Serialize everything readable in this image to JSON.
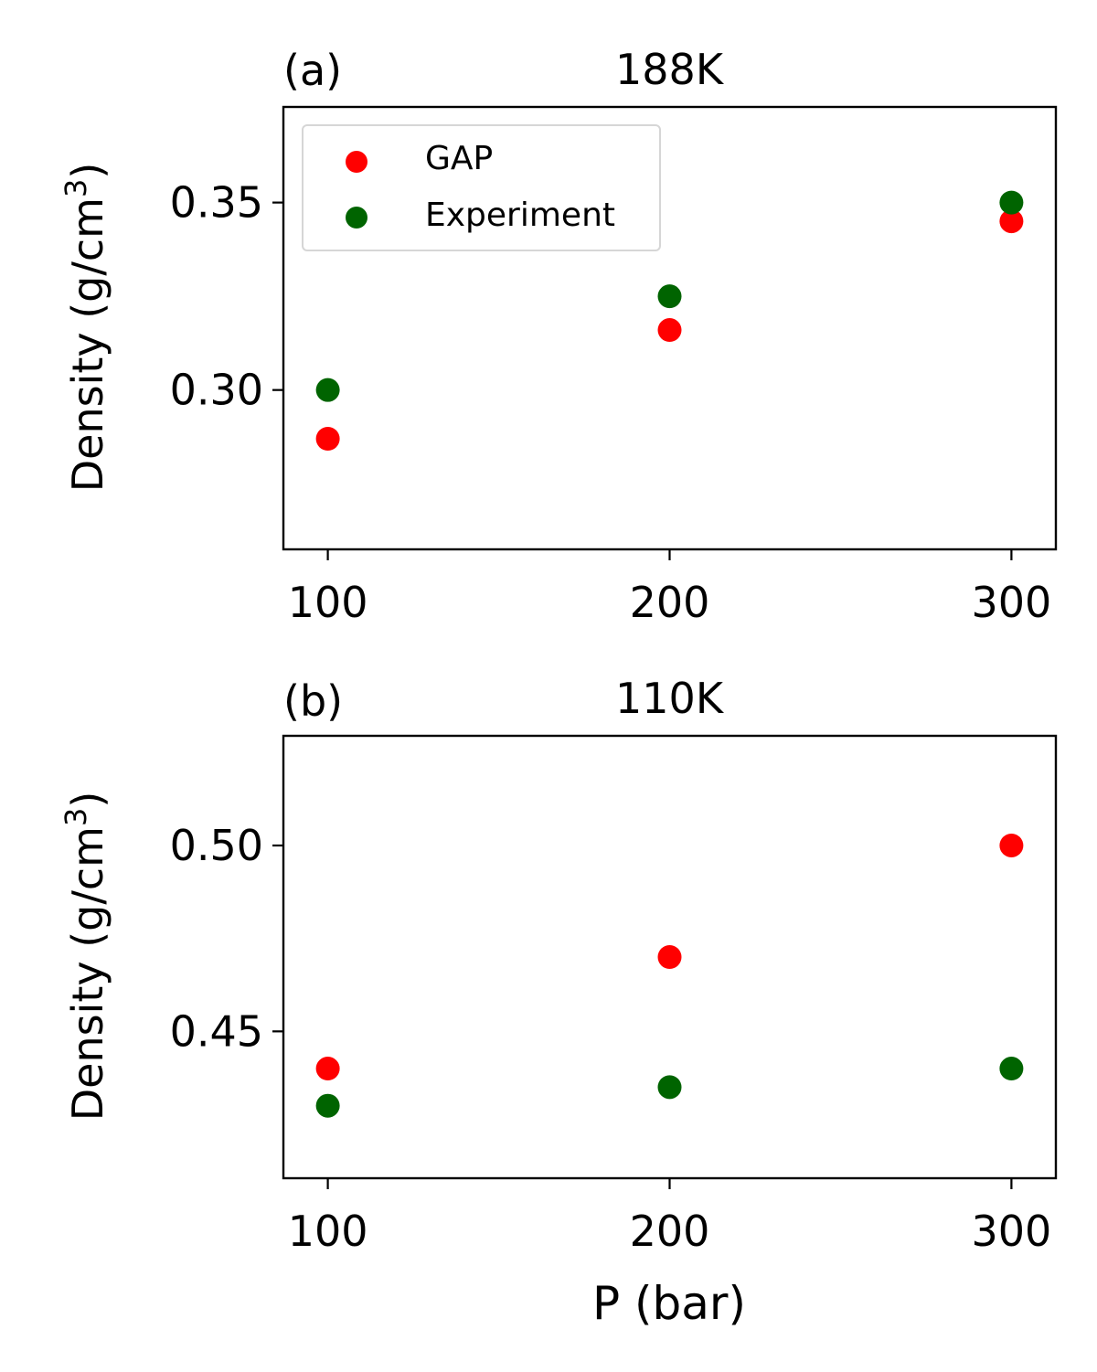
{
  "chart_data": [
    {
      "type": "scatter",
      "panel_label": "(a)",
      "title": "188K",
      "xlabel": "",
      "ylabel": "Density (g/cm",
      "ylabel_sup": "3",
      "ylabel_close": ")",
      "x": [
        100,
        200,
        300
      ],
      "xlim": [
        87,
        313
      ],
      "ylim": [
        0.2575,
        0.3755
      ],
      "xticks": [
        100,
        200,
        300
      ],
      "xtick_labels": [
        "100",
        "200",
        "300"
      ],
      "yticks": [
        0.3,
        0.35
      ],
      "ytick_labels": [
        "0.30",
        "0.35"
      ],
      "legend": {
        "position": "upper-left",
        "entries": [
          "GAP",
          "Experiment"
        ]
      },
      "series": [
        {
          "name": "GAP",
          "color": "#ff0000",
          "values": [
            0.287,
            0.316,
            0.345
          ]
        },
        {
          "name": "Experiment",
          "color": "#006400",
          "values": [
            0.3,
            0.325,
            0.35
          ]
        }
      ]
    },
    {
      "type": "scatter",
      "panel_label": "(b)",
      "title": "110K",
      "xlabel": "P (bar)",
      "ylabel": "Density (g/cm",
      "ylabel_sup": "3",
      "ylabel_close": ")",
      "x": [
        100,
        200,
        300
      ],
      "xlim": [
        87,
        313
      ],
      "ylim": [
        0.4105,
        0.5295
      ],
      "xticks": [
        100,
        200,
        300
      ],
      "xtick_labels": [
        "100",
        "200",
        "300"
      ],
      "yticks": [
        0.45,
        0.5
      ],
      "ytick_labels": [
        "0.45",
        "0.50"
      ],
      "series": [
        {
          "name": "GAP",
          "color": "#ff0000",
          "values": [
            0.44,
            0.47,
            0.5
          ]
        },
        {
          "name": "Experiment",
          "color": "#006400",
          "values": [
            0.43,
            0.435,
            0.44
          ]
        }
      ]
    }
  ]
}
